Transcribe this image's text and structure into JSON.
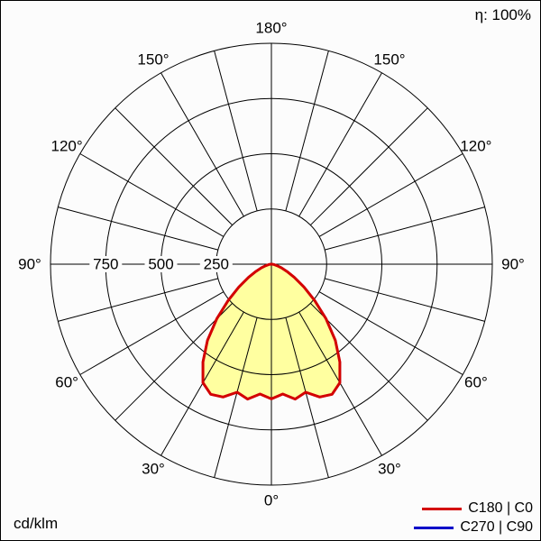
{
  "header": {
    "efficiency": "η: 100%"
  },
  "footer": {
    "units": "cd/klm"
  },
  "legend": [
    {
      "label": "C180 | C0",
      "color": "#d40000"
    },
    {
      "label": "C270 | C90",
      "color": "#0000c8"
    }
  ],
  "chart_data": {
    "type": "line",
    "subtype": "polar-luminous-intensity-distribution",
    "title": "",
    "units": "cd/klm",
    "efficiency_label": "η: 100%",
    "grid": true,
    "angle_zero_position": "bottom",
    "angle_tick_step_deg": 15,
    "angle_label_step_deg": 30,
    "angle_labels": [
      "0°",
      "30°",
      "60°",
      "90°",
      "120°",
      "150°",
      "180°"
    ],
    "radial_ticks": [
      250,
      500,
      750
    ],
    "radial_max": 1000,
    "gamma_deg": [
      0,
      5,
      10,
      15,
      20,
      25,
      30,
      35,
      40,
      45,
      50,
      55,
      60,
      65,
      70,
      75,
      80,
      85,
      90
    ],
    "series": [
      {
        "name": "C180 | C0",
        "color": "#d40000",
        "fill": "#ffffa0",
        "values": [
          610,
          590,
          620,
          600,
          640,
          650,
          620,
          540,
          450,
          350,
          255,
          180,
          120,
          78,
          48,
          28,
          14,
          6,
          2
        ]
      },
      {
        "name": "C270 | C90",
        "color": "#0000c8",
        "fill": "none",
        "values": [
          610,
          590,
          620,
          600,
          640,
          650,
          620,
          540,
          450,
          350,
          255,
          180,
          120,
          78,
          48,
          28,
          14,
          6,
          2
        ]
      }
    ]
  }
}
